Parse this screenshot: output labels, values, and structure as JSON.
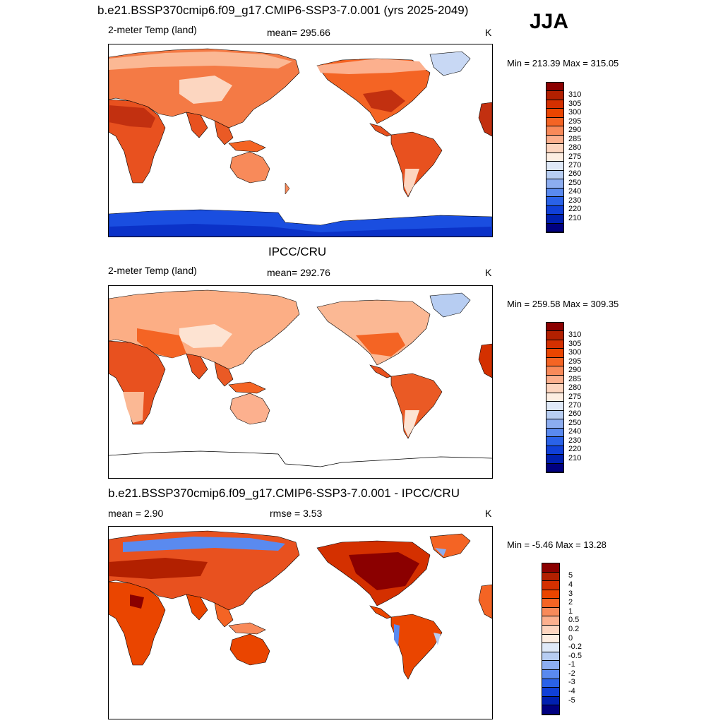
{
  "header": {
    "main_title": "b.e21.BSSP370cmip6.f09_g17.CMIP6-SSP3-7.0.001 (yrs 2025-2049)",
    "season": "JJA"
  },
  "panels": [
    {
      "left_label": "2-meter Temp (land)",
      "center_label": "mean= 295.66",
      "right_label": "K",
      "minmax": "Min = 213.39 Max = 315.05",
      "colorbar": {
        "labels": [
          "310",
          "305",
          "300",
          "295",
          "290",
          "285",
          "280",
          "275",
          "270",
          "260",
          "250",
          "240",
          "230",
          "220",
          "210"
        ],
        "colors": [
          "#8b0000",
          "#b22000",
          "#d43000",
          "#ea4500",
          "#f46424",
          "#f88a5a",
          "#fcb08e",
          "#fdd5bf",
          "#fdeee2",
          "#dfe9f8",
          "#b7cdf2",
          "#8cadf0",
          "#5a8aef",
          "#2a62e8",
          "#1040d8",
          "#0020b0",
          "#000080"
        ]
      }
    },
    {
      "title": "IPCC/CRU",
      "left_label": "2-meter Temp (land)",
      "center_label": "mean= 292.76",
      "right_label": "K",
      "minmax": "Min = 259.58 Max = 309.35",
      "colorbar": {
        "labels": [
          "310",
          "305",
          "300",
          "295",
          "290",
          "285",
          "280",
          "275",
          "270",
          "260",
          "250",
          "240",
          "230",
          "220",
          "210"
        ],
        "colors": [
          "#8b0000",
          "#b22000",
          "#d43000",
          "#ea4500",
          "#f46424",
          "#f88a5a",
          "#fcb08e",
          "#fdd5bf",
          "#fdeee2",
          "#dfe9f8",
          "#b7cdf2",
          "#8cadf0",
          "#5a8aef",
          "#2a62e8",
          "#1040d8",
          "#0020b0",
          "#000080"
        ]
      }
    },
    {
      "title": "b.e21.BSSP370cmip6.f09_g17.CMIP6-SSP3-7.0.001 - IPCC/CRU",
      "left_label": "mean =   2.90",
      "center_label": "rmse =   3.53",
      "right_label": "K",
      "minmax": "Min =  -5.46 Max =  13.28",
      "colorbar": {
        "labels": [
          "5",
          "4",
          "3",
          "2",
          "1",
          "0.5",
          "0.2",
          "0",
          "-0.2",
          "-0.5",
          "-1",
          "-2",
          "-3",
          "-4",
          "-5"
        ],
        "colors": [
          "#8b0000",
          "#b22000",
          "#d43000",
          "#ea4500",
          "#f46424",
          "#f88a5a",
          "#fcb08e",
          "#fdd5bf",
          "#fdeee2",
          "#dfe9f8",
          "#b7cdf2",
          "#8cadf0",
          "#5a8aef",
          "#2a62e8",
          "#1040d8",
          "#0020b0",
          "#000080"
        ]
      }
    }
  ]
}
